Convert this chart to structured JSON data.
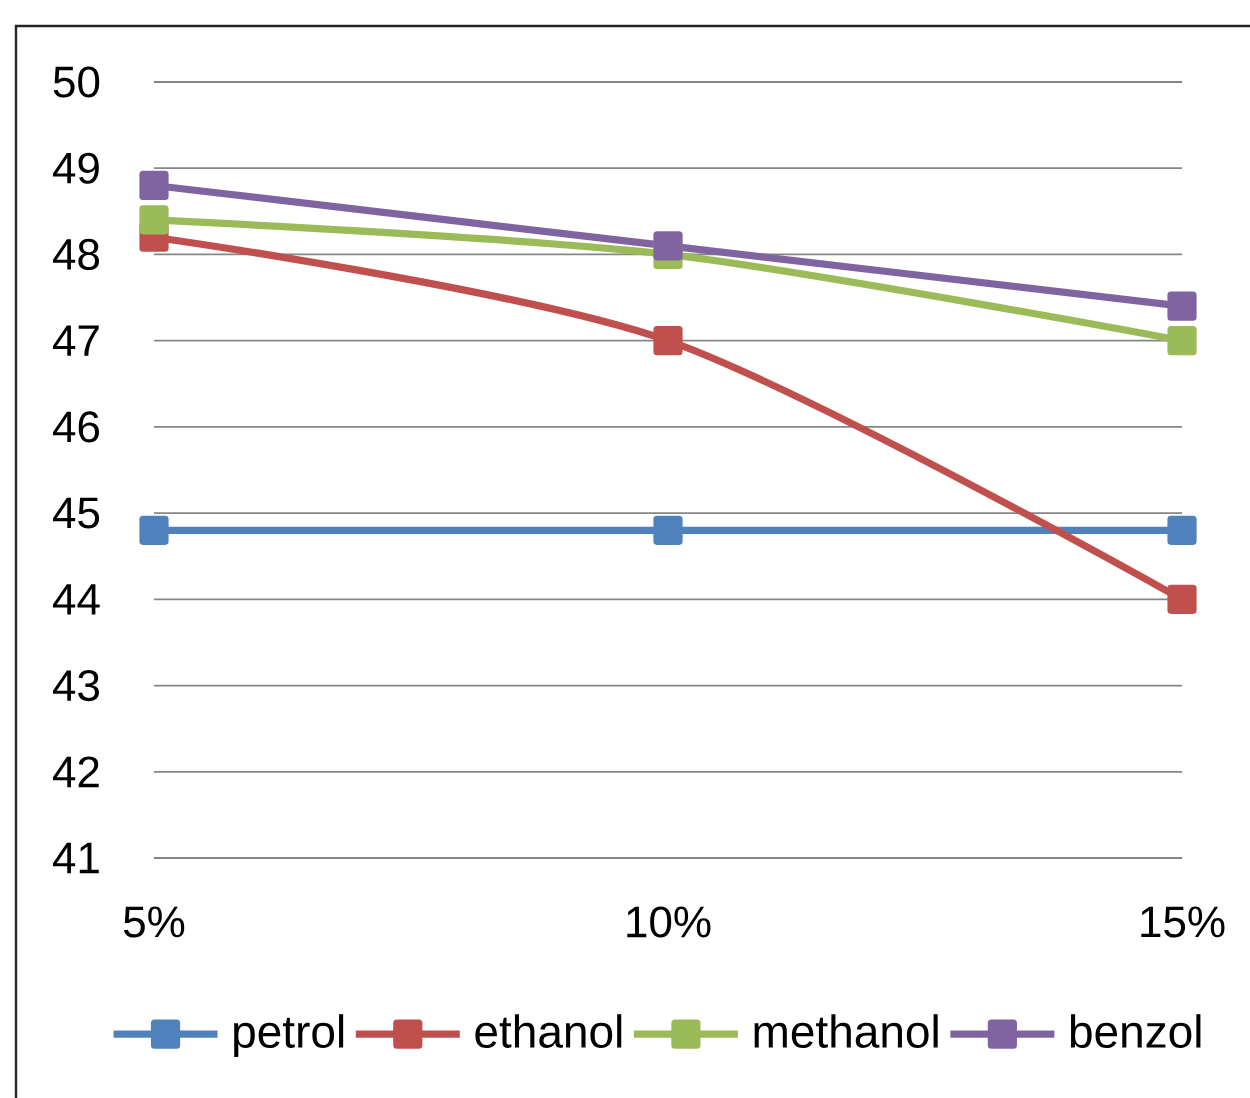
{
  "chart_data": {
    "type": "line",
    "categories": [
      "5%",
      "10%",
      "15%"
    ],
    "series": [
      {
        "name": "petrol",
        "color": "#4f81bd",
        "values": [
          44.8,
          44.8,
          44.8
        ]
      },
      {
        "name": "ethanol",
        "color": "#c0504d",
        "values": [
          48.2,
          47,
          44
        ]
      },
      {
        "name": "methanol",
        "color": "#9bbb59",
        "values": [
          48.4,
          48,
          47
        ]
      },
      {
        "name": "benzol",
        "color": "#8064a2",
        "values": [
          48.8,
          48.1,
          47.4
        ]
      }
    ],
    "ylim": [
      41,
      50
    ],
    "yticks": [
      41,
      42,
      43,
      44,
      45,
      46,
      47,
      48,
      49,
      50
    ],
    "grid": "y",
    "legend": "bottom",
    "marker": "square",
    "line_style": "solid"
  }
}
